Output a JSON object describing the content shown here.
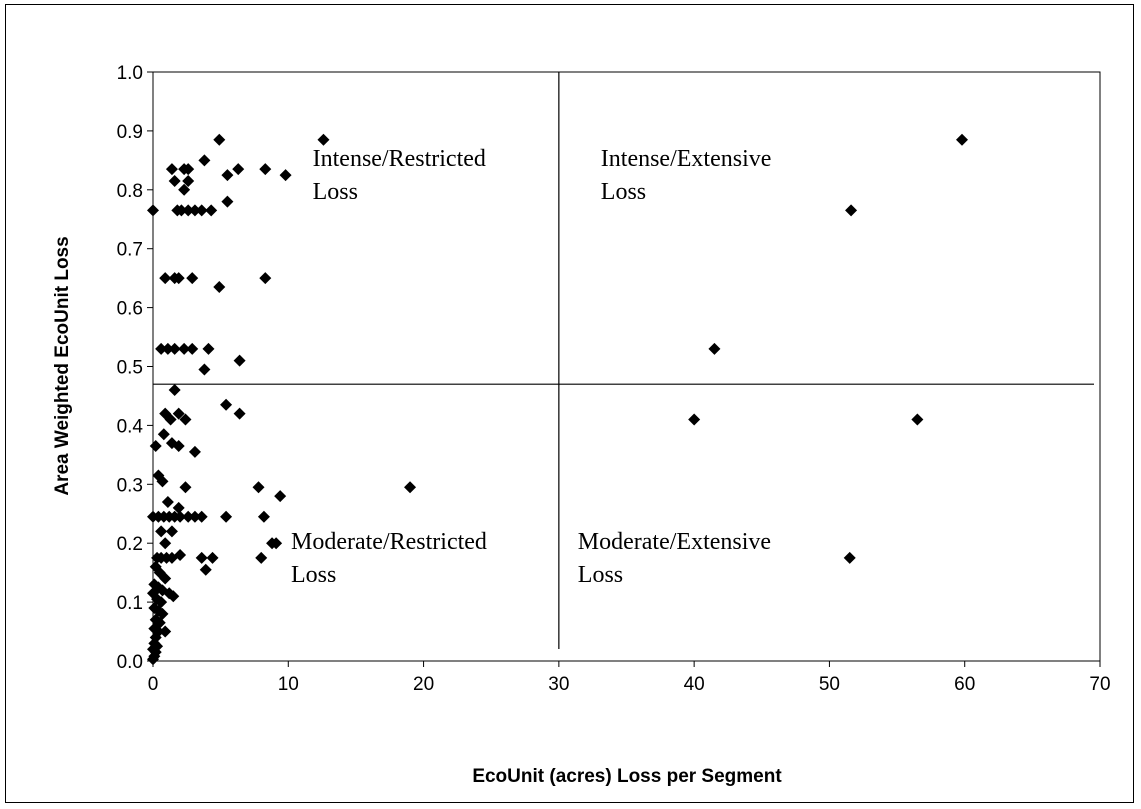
{
  "chart_data": {
    "type": "scatter",
    "title": "",
    "xlabel": "EcoUnit (acres) Loss per Segment",
    "ylabel": "Area Weighted EcoUnit Loss",
    "xlim": [
      0,
      70
    ],
    "ylim": [
      0,
      1.0
    ],
    "x_ticks": [
      "0",
      "10",
      "20",
      "30",
      "40",
      "50",
      "60",
      "70"
    ],
    "y_ticks": [
      "0.0",
      "0.1",
      "0.2",
      "0.3",
      "0.4",
      "0.5",
      "0.6",
      "0.7",
      "0.8",
      "0.9",
      "1.0"
    ],
    "grid": false,
    "legend": "none",
    "marker": "diamond",
    "marker_color": "#000000",
    "dividers": {
      "x": 30,
      "y": 0.47
    },
    "quadrant_labels": [
      {
        "lines": [
          "Intense/Restricted",
          "Loss"
        ],
        "x": 11.8,
        "y": 0.84
      },
      {
        "lines": [
          "Intense/Extensive",
          "Loss"
        ],
        "x": 33.1,
        "y": 0.84
      },
      {
        "lines": [
          "Moderate/Restricted",
          "Loss"
        ],
        "x": 10.2,
        "y": 0.19
      },
      {
        "lines": [
          "Moderate/Extensive",
          "Loss"
        ],
        "x": 31.4,
        "y": 0.19
      }
    ],
    "points": [
      [
        59.8,
        0.885
      ],
      [
        51.6,
        0.765
      ],
      [
        41.5,
        0.53
      ],
      [
        40.0,
        0.41
      ],
      [
        56.5,
        0.41
      ],
      [
        51.5,
        0.175
      ],
      [
        19.0,
        0.295
      ],
      [
        12.6,
        0.885
      ],
      [
        4.9,
        0.885
      ],
      [
        9.8,
        0.825
      ],
      [
        8.3,
        0.835
      ],
      [
        6.3,
        0.835
      ],
      [
        5.5,
        0.825
      ],
      [
        3.8,
        0.85
      ],
      [
        2.6,
        0.835
      ],
      [
        2.3,
        0.835
      ],
      [
        1.4,
        0.835
      ],
      [
        1.6,
        0.815
      ],
      [
        2.6,
        0.815
      ],
      [
        2.3,
        0.8
      ],
      [
        5.5,
        0.78
      ],
      [
        4.3,
        0.765
      ],
      [
        3.6,
        0.765
      ],
      [
        3.1,
        0.765
      ],
      [
        2.6,
        0.765
      ],
      [
        2.1,
        0.765
      ],
      [
        1.8,
        0.765
      ],
      [
        0.0,
        0.765
      ],
      [
        8.3,
        0.65
      ],
      [
        2.9,
        0.65
      ],
      [
        1.9,
        0.65
      ],
      [
        1.6,
        0.65
      ],
      [
        0.9,
        0.65
      ],
      [
        4.9,
        0.635
      ],
      [
        4.1,
        0.53
      ],
      [
        2.9,
        0.53
      ],
      [
        2.3,
        0.53
      ],
      [
        1.6,
        0.53
      ],
      [
        1.1,
        0.53
      ],
      [
        0.6,
        0.53
      ],
      [
        6.4,
        0.51
      ],
      [
        3.8,
        0.495
      ],
      [
        1.6,
        0.46
      ],
      [
        5.4,
        0.435
      ],
      [
        6.4,
        0.42
      ],
      [
        0.9,
        0.42
      ],
      [
        1.9,
        0.42
      ],
      [
        2.4,
        0.41
      ],
      [
        1.3,
        0.41
      ],
      [
        0.8,
        0.385
      ],
      [
        1.4,
        0.37
      ],
      [
        1.9,
        0.365
      ],
      [
        0.2,
        0.365
      ],
      [
        3.1,
        0.355
      ],
      [
        0.4,
        0.315
      ],
      [
        0.7,
        0.305
      ],
      [
        7.8,
        0.295
      ],
      [
        2.4,
        0.295
      ],
      [
        9.4,
        0.28
      ],
      [
        1.1,
        0.27
      ],
      [
        1.9,
        0.26
      ],
      [
        0.0,
        0.245
      ],
      [
        0.4,
        0.245
      ],
      [
        0.8,
        0.245
      ],
      [
        1.2,
        0.245
      ],
      [
        1.6,
        0.245
      ],
      [
        2.0,
        0.245
      ],
      [
        2.6,
        0.245
      ],
      [
        3.1,
        0.245
      ],
      [
        3.6,
        0.245
      ],
      [
        5.4,
        0.245
      ],
      [
        8.2,
        0.245
      ],
      [
        0.6,
        0.22
      ],
      [
        1.4,
        0.22
      ],
      [
        0.9,
        0.2
      ],
      [
        8.8,
        0.2
      ],
      [
        9.1,
        0.2
      ],
      [
        2.0,
        0.18
      ],
      [
        3.6,
        0.175
      ],
      [
        4.4,
        0.175
      ],
      [
        8.0,
        0.175
      ],
      [
        0.3,
        0.175
      ],
      [
        0.6,
        0.175
      ],
      [
        1.0,
        0.175
      ],
      [
        1.4,
        0.175
      ],
      [
        3.9,
        0.155
      ],
      [
        0.2,
        0.16
      ],
      [
        0.5,
        0.15
      ],
      [
        0.9,
        0.14
      ],
      [
        0.1,
        0.13
      ],
      [
        0.4,
        0.125
      ],
      [
        0.7,
        0.12
      ],
      [
        1.2,
        0.115
      ],
      [
        1.5,
        0.11
      ],
      [
        0.0,
        0.115
      ],
      [
        0.3,
        0.105
      ],
      [
        0.6,
        0.1
      ],
      [
        0.1,
        0.09
      ],
      [
        0.4,
        0.085
      ],
      [
        0.7,
        0.08
      ],
      [
        0.2,
        0.07
      ],
      [
        0.5,
        0.065
      ],
      [
        0.1,
        0.055
      ],
      [
        0.4,
        0.05
      ],
      [
        0.9,
        0.05
      ],
      [
        0.2,
        0.04
      ],
      [
        0.1,
        0.03
      ],
      [
        0.3,
        0.025
      ],
      [
        0.0,
        0.02
      ],
      [
        0.2,
        0.015
      ],
      [
        0.1,
        0.008
      ],
      [
        0.0,
        0.003
      ]
    ]
  }
}
